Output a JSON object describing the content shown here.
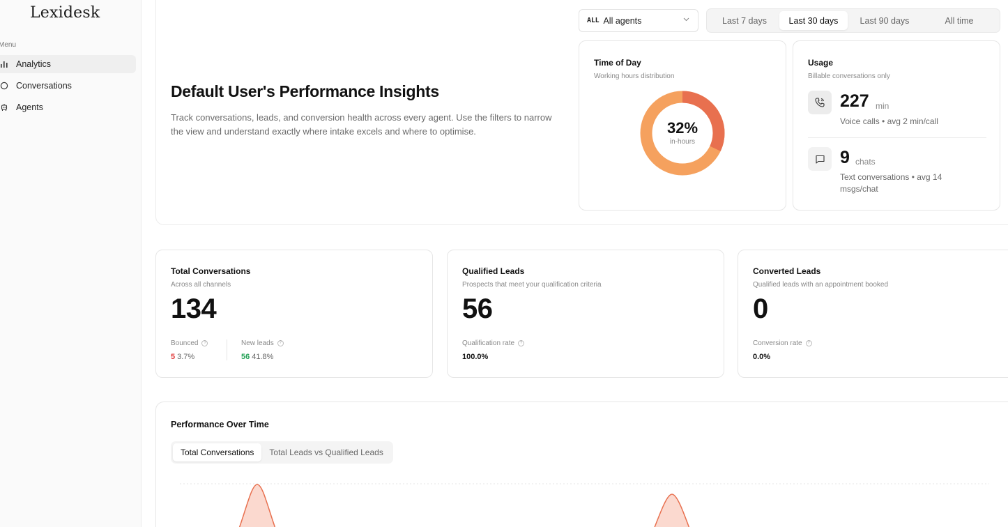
{
  "app": {
    "name": "Lexidesk"
  },
  "sidebar": {
    "menu_label": "Menu",
    "items": [
      {
        "label": "Analytics",
        "icon": "bar-chart-icon",
        "active": true
      },
      {
        "label": "Conversations",
        "icon": "chat-bubble-icon",
        "active": false
      },
      {
        "label": "Agents",
        "icon": "agents-icon",
        "active": false
      }
    ]
  },
  "header": {
    "title": "Default User's Performance Insights",
    "description": "Track conversations, leads, and conversion health across every agent. Use the filters to narrow the view and understand exactly where intake excels and where to optimise."
  },
  "filters": {
    "agent_badge": "ALL",
    "agent_value": "All agents",
    "ranges": [
      "Last 7 days",
      "Last 30 days",
      "Last 90 days",
      "All time"
    ],
    "active_range": "Last 30 days"
  },
  "time_of_day": {
    "title": "Time of Day",
    "subtitle": "Working hours distribution",
    "percent_value": 32,
    "percent_text": "32%",
    "label": "in-hours",
    "colors": {
      "in_hours": "#e8704f",
      "out_hours": "#f5a15e"
    }
  },
  "usage": {
    "title": "Usage",
    "subtitle": "Billable conversations only",
    "voice": {
      "value": "227",
      "unit": "min",
      "desc": "Voice calls • avg 2 min/call"
    },
    "text": {
      "value": "9",
      "unit": "chats",
      "desc": "Text conversations • avg 14 msgs/chat"
    }
  },
  "stats": {
    "total": {
      "title": "Total Conversations",
      "subtitle": "Across all channels",
      "value": "134",
      "bounced_label": "Bounced",
      "bounced_value": "5",
      "bounced_pct": "3.7%",
      "new_leads_label": "New leads",
      "new_leads_value": "56",
      "new_leads_pct": "41.8%"
    },
    "qualified": {
      "title": "Qualified Leads",
      "subtitle": "Prospects that meet your qualification criteria",
      "value": "56",
      "rate_label": "Qualification rate",
      "rate_value": "100.0%"
    },
    "converted": {
      "title": "Converted Leads",
      "subtitle": "Qualified leads with an appointment booked",
      "value": "0",
      "rate_label": "Conversion rate",
      "rate_value": "0.0%"
    }
  },
  "performance": {
    "title": "Performance Over Time",
    "tabs": [
      "Total Conversations",
      "Total Leads vs Qualified Leads"
    ],
    "active_tab": "Total Conversations",
    "series_color": "#e8704f",
    "fill_color": "#fbd9cf"
  }
}
